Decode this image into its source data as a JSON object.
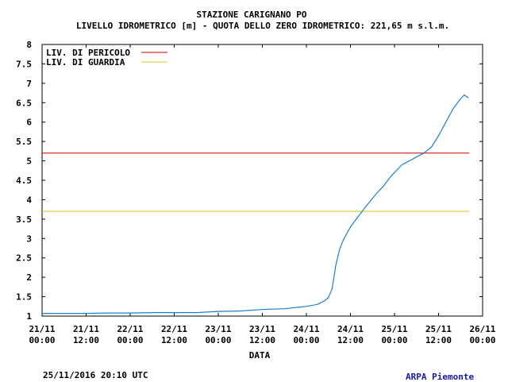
{
  "chart_data": {
    "type": "line",
    "title": "STAZIONE CARIGNANO PO",
    "subtitle": "LIVELLO IDROMETRICO [m] - QUOTA DELLO ZERO IDROMETRICO: 221,65  m s.l.m.",
    "xlabel": "DATA",
    "ylabel": "",
    "ylim": [
      1,
      8
    ],
    "yticks": [
      "1",
      "1.5",
      "2",
      "2.5",
      "3",
      "3.5",
      "4",
      "4.5",
      "5",
      "5.5",
      "6",
      "6.5",
      "7",
      "7.5",
      "8"
    ],
    "xlim": [
      "2016-11-21T00:00",
      "2016-11-26T00:00"
    ],
    "xticks": [
      {
        "l1": "21/11",
        "l2": "00:00"
      },
      {
        "l1": "21/11",
        "l2": "12:00"
      },
      {
        "l1": "22/11",
        "l2": "00:00"
      },
      {
        "l1": "22/11",
        "l2": "12:00"
      },
      {
        "l1": "23/11",
        "l2": "00:00"
      },
      {
        "l1": "23/11",
        "l2": "12:00"
      },
      {
        "l1": "24/11",
        "l2": "00:00"
      },
      {
        "l1": "24/11",
        "l2": "12:00"
      },
      {
        "l1": "25/11",
        "l2": "00:00"
      },
      {
        "l1": "25/11",
        "l2": "12:00"
      },
      {
        "l1": "26/11",
        "l2": "00:00"
      }
    ],
    "grid": false,
    "legend": {
      "position": "top-left",
      "entries": [
        {
          "label": "LIV. DI PERICOLO",
          "color": "#cc0000",
          "value": 5.2
        },
        {
          "label": "LIV. DI GUARDIA",
          "color": "#e0c020",
          "value": 3.7
        }
      ]
    },
    "series": [
      {
        "color": "#1a7fd0",
        "points": [
          [
            "2016-11-21T00:00",
            1.07
          ],
          [
            "2016-11-21T06:00",
            1.07
          ],
          [
            "2016-11-21T12:00",
            1.07
          ],
          [
            "2016-11-21T18:00",
            1.08
          ],
          [
            "2016-11-22T00:00",
            1.08
          ],
          [
            "2016-11-22T06:00",
            1.09
          ],
          [
            "2016-11-22T12:00",
            1.09
          ],
          [
            "2016-11-22T18:00",
            1.09
          ],
          [
            "2016-11-23T00:00",
            1.12
          ],
          [
            "2016-11-23T06:00",
            1.13
          ],
          [
            "2016-11-23T12:00",
            1.17
          ],
          [
            "2016-11-23T18:00",
            1.19
          ],
          [
            "2016-11-24T00:00",
            1.25
          ],
          [
            "2016-11-24T03:00",
            1.3
          ],
          [
            "2016-11-24T05:00",
            1.4
          ],
          [
            "2016-11-24T06:00",
            1.48
          ],
          [
            "2016-11-24T07:00",
            1.7
          ],
          [
            "2016-11-24T08:00",
            2.3
          ],
          [
            "2016-11-24T09:00",
            2.7
          ],
          [
            "2016-11-24T10:00",
            2.95
          ],
          [
            "2016-11-24T12:00",
            3.3
          ],
          [
            "2016-11-24T14:00",
            3.55
          ],
          [
            "2016-11-24T16:00",
            3.8
          ],
          [
            "2016-11-24T19:00",
            4.15
          ],
          [
            "2016-11-24T21:00",
            4.35
          ],
          [
            "2016-11-24T23:00",
            4.6
          ],
          [
            "2016-11-25T02:00",
            4.9
          ],
          [
            "2016-11-25T04:00",
            5.0
          ],
          [
            "2016-11-25T06:00",
            5.1
          ],
          [
            "2016-11-25T08:00",
            5.2
          ],
          [
            "2016-11-25T10:00",
            5.35
          ],
          [
            "2016-11-25T12:00",
            5.65
          ],
          [
            "2016-11-25T14:00",
            6.0
          ],
          [
            "2016-11-25T16:00",
            6.35
          ],
          [
            "2016-11-25T18:00",
            6.6
          ],
          [
            "2016-11-25T19:00",
            6.7
          ],
          [
            "2016-11-25T20:10",
            6.62
          ]
        ]
      }
    ]
  },
  "footer": {
    "timestamp": "25/11/2016 20:10 UTC",
    "organization": "ARPA Piemonte"
  }
}
